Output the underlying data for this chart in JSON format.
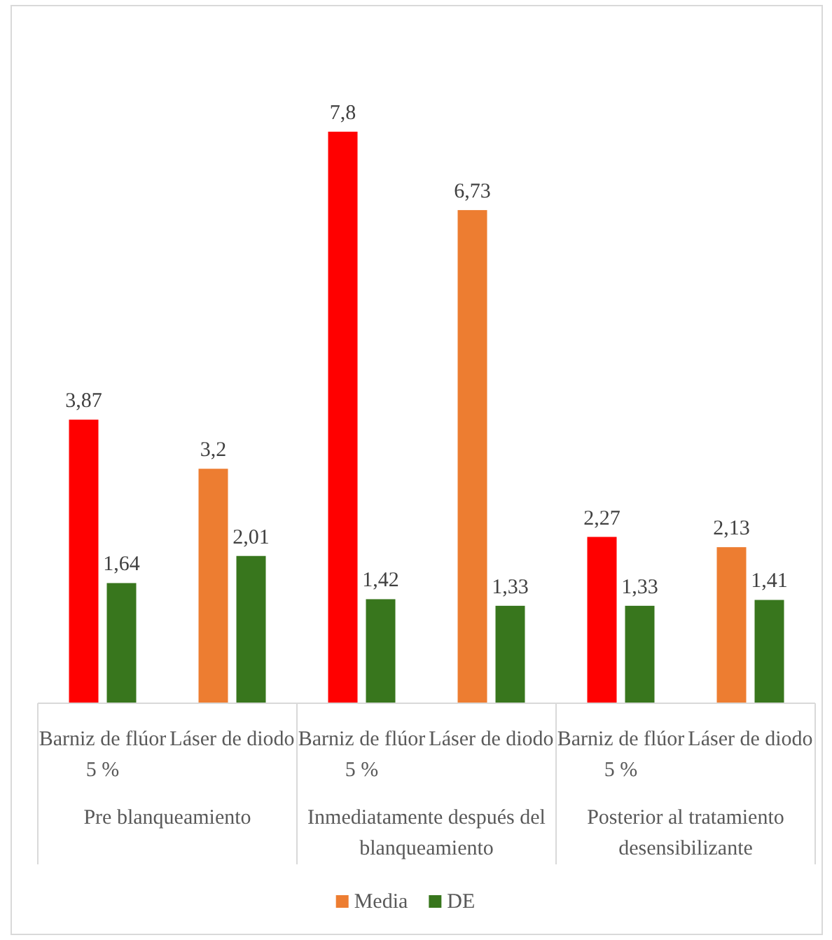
{
  "chart_data": {
    "type": "bar",
    "categories": [
      "Barniz de flúor 5 %",
      "Láser de diodo",
      "Barniz de flúor 5 %",
      "Láser de diodo",
      "Barniz de flúor 5 %",
      "Láser de diodo"
    ],
    "annotations": [
      "Pre blanqueamiento",
      "Inmediatamente después del blanqueamiento",
      "Posterior al tratamiento desensibilizante"
    ],
    "series": [
      {
        "name": "Media",
        "color": "#ed7d31",
        "colors": [
          "#ff0000",
          "#ed7d31",
          "#ff0000",
          "#ed7d31",
          "#ff0000",
          "#ed7d31"
        ],
        "values": [
          3.87,
          3.2,
          7.8,
          6.73,
          2.27,
          2.13
        ],
        "value_labels": [
          "3,87",
          "3,2",
          "7,8",
          "6,73",
          "2,27",
          "2,13"
        ]
      },
      {
        "name": "DE",
        "color": "#38761d",
        "values": [
          1.64,
          2.01,
          1.42,
          1.33,
          1.33,
          1.41
        ],
        "value_labels": [
          "1,64",
          "2,01",
          "1,42",
          "1,33",
          "1,33",
          "1,41"
        ]
      }
    ],
    "legend": "bottom"
  }
}
